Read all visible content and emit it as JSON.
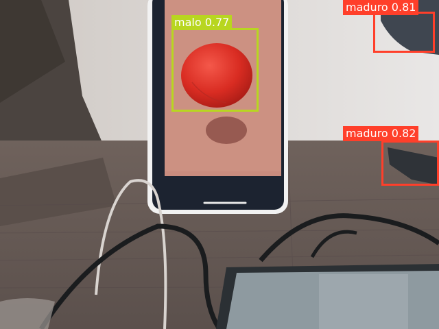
{
  "detections": [
    {
      "label": "malo",
      "score": "0.77",
      "color": "#b8d620"
    },
    {
      "label": "maduro",
      "score": "0.81",
      "color": "#ff3f2a"
    },
    {
      "label": "maduro",
      "score": "0.82",
      "color": "#ff3f2a"
    }
  ]
}
